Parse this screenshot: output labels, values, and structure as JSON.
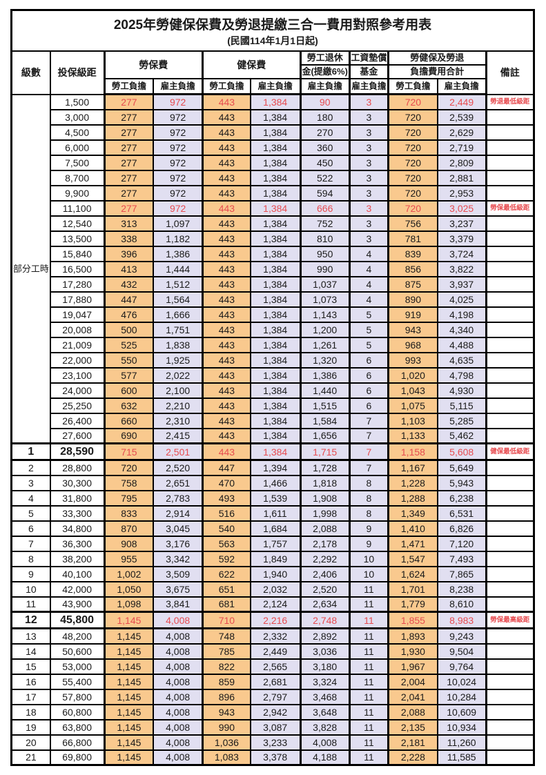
{
  "title": "2025年勞健保保費及勞退提繳三合一費用對照參考用表",
  "subtitle": "(民國114年1月1日起)",
  "colors": {
    "employee_bg": "#F9C98E",
    "employer_bg": "#E1DFF1",
    "highlight_red": "#E74C50",
    "border": "#000000"
  },
  "header": {
    "level": "級數",
    "bracket": "投保級距",
    "labor_insurance": "勞保費",
    "health_insurance": "健保費",
    "pension_line1": "勞工退休",
    "pension_line2": "金(提繳6%)",
    "wage_fund_line1": "工資墊償",
    "wage_fund_line2": "基金",
    "total_line1": "勞健保及勞退",
    "total_line2": "負擔費用合計",
    "notes": "備註",
    "employee": "勞工負擔",
    "employer": "雇主負擔"
  },
  "part_time": {
    "label": "部分工時",
    "rowspan": 23
  },
  "rows": [
    {
      "level": "",
      "bracket": "1,500",
      "cells": [
        "277",
        "972",
        "443",
        "1,384",
        "90",
        "3",
        "720",
        "2,449"
      ],
      "note": "勞退最低級距",
      "red": true,
      "em": false
    },
    {
      "level": "",
      "bracket": "3,000",
      "cells": [
        "277",
        "972",
        "443",
        "1,384",
        "180",
        "3",
        "720",
        "2,539"
      ],
      "note": "",
      "red": false,
      "em": false
    },
    {
      "level": "",
      "bracket": "4,500",
      "cells": [
        "277",
        "972",
        "443",
        "1,384",
        "270",
        "3",
        "720",
        "2,629"
      ],
      "note": "",
      "red": false,
      "em": false
    },
    {
      "level": "",
      "bracket": "6,000",
      "cells": [
        "277",
        "972",
        "443",
        "1,384",
        "360",
        "3",
        "720",
        "2,719"
      ],
      "note": "",
      "red": false,
      "em": false
    },
    {
      "level": "",
      "bracket": "7,500",
      "cells": [
        "277",
        "972",
        "443",
        "1,384",
        "450",
        "3",
        "720",
        "2,809"
      ],
      "note": "",
      "red": false,
      "em": false
    },
    {
      "level": "",
      "bracket": "8,700",
      "cells": [
        "277",
        "972",
        "443",
        "1,384",
        "522",
        "3",
        "720",
        "2,881"
      ],
      "note": "",
      "red": false,
      "em": false
    },
    {
      "level": "",
      "bracket": "9,900",
      "cells": [
        "277",
        "972",
        "443",
        "1,384",
        "594",
        "3",
        "720",
        "2,953"
      ],
      "note": "",
      "red": false,
      "em": false
    },
    {
      "level": "",
      "bracket": "11,100",
      "cells": [
        "277",
        "972",
        "443",
        "1,384",
        "666",
        "3",
        "720",
        "3,025"
      ],
      "note": "勞保最低級距",
      "red": true,
      "em": false
    },
    {
      "level": "",
      "bracket": "12,540",
      "cells": [
        "313",
        "1,097",
        "443",
        "1,384",
        "752",
        "3",
        "756",
        "3,237"
      ],
      "note": "",
      "red": false,
      "em": false
    },
    {
      "level": "",
      "bracket": "13,500",
      "cells": [
        "338",
        "1,182",
        "443",
        "1,384",
        "810",
        "3",
        "781",
        "3,379"
      ],
      "note": "",
      "red": false,
      "em": false
    },
    {
      "level": "",
      "bracket": "15,840",
      "cells": [
        "396",
        "1,386",
        "443",
        "1,384",
        "950",
        "4",
        "839",
        "3,724"
      ],
      "note": "",
      "red": false,
      "em": false
    },
    {
      "level": "",
      "bracket": "16,500",
      "cells": [
        "413",
        "1,444",
        "443",
        "1,384",
        "990",
        "4",
        "856",
        "3,822"
      ],
      "note": "",
      "red": false,
      "em": false
    },
    {
      "level": "",
      "bracket": "17,280",
      "cells": [
        "432",
        "1,512",
        "443",
        "1,384",
        "1,037",
        "4",
        "875",
        "3,937"
      ],
      "note": "",
      "red": false,
      "em": false
    },
    {
      "level": "",
      "bracket": "17,880",
      "cells": [
        "447",
        "1,564",
        "443",
        "1,384",
        "1,073",
        "4",
        "890",
        "4,025"
      ],
      "note": "",
      "red": false,
      "em": false
    },
    {
      "level": "",
      "bracket": "19,047",
      "cells": [
        "476",
        "1,666",
        "443",
        "1,384",
        "1,143",
        "5",
        "919",
        "4,198"
      ],
      "note": "",
      "red": false,
      "em": false
    },
    {
      "level": "",
      "bracket": "20,008",
      "cells": [
        "500",
        "1,751",
        "443",
        "1,384",
        "1,200",
        "5",
        "943",
        "4,340"
      ],
      "note": "",
      "red": false,
      "em": false
    },
    {
      "level": "",
      "bracket": "21,009",
      "cells": [
        "525",
        "1,838",
        "443",
        "1,384",
        "1,261",
        "5",
        "968",
        "4,488"
      ],
      "note": "",
      "red": false,
      "em": false
    },
    {
      "level": "",
      "bracket": "22,000",
      "cells": [
        "550",
        "1,925",
        "443",
        "1,384",
        "1,320",
        "6",
        "993",
        "4,635"
      ],
      "note": "",
      "red": false,
      "em": false
    },
    {
      "level": "",
      "bracket": "23,100",
      "cells": [
        "577",
        "2,022",
        "443",
        "1,384",
        "1,386",
        "6",
        "1,020",
        "4,798"
      ],
      "note": "",
      "red": false,
      "em": false
    },
    {
      "level": "",
      "bracket": "24,000",
      "cells": [
        "600",
        "2,100",
        "443",
        "1,384",
        "1,440",
        "6",
        "1,043",
        "4,930"
      ],
      "note": "",
      "red": false,
      "em": false
    },
    {
      "level": "",
      "bracket": "25,250",
      "cells": [
        "632",
        "2,210",
        "443",
        "1,384",
        "1,515",
        "6",
        "1,075",
        "5,115"
      ],
      "note": "",
      "red": false,
      "em": false
    },
    {
      "level": "",
      "bracket": "26,400",
      "cells": [
        "660",
        "2,310",
        "443",
        "1,384",
        "1,584",
        "7",
        "1,103",
        "5,285"
      ],
      "note": "",
      "red": false,
      "em": false
    },
    {
      "level": "",
      "bracket": "27,600",
      "cells": [
        "690",
        "2,415",
        "443",
        "1,384",
        "1,656",
        "7",
        "1,133",
        "5,462"
      ],
      "note": "",
      "red": false,
      "em": false
    },
    {
      "level": "1",
      "bracket": "28,590",
      "cells": [
        "715",
        "2,501",
        "443",
        "1,384",
        "1,715",
        "7",
        "1,158",
        "5,608"
      ],
      "note": "健保最低級距",
      "red": true,
      "em": true
    },
    {
      "level": "2",
      "bracket": "28,800",
      "cells": [
        "720",
        "2,520",
        "447",
        "1,394",
        "1,728",
        "7",
        "1,167",
        "5,649"
      ],
      "note": "",
      "red": false,
      "em": false
    },
    {
      "level": "3",
      "bracket": "30,300",
      "cells": [
        "758",
        "2,651",
        "470",
        "1,466",
        "1,818",
        "8",
        "1,228",
        "5,943"
      ],
      "note": "",
      "red": false,
      "em": false
    },
    {
      "level": "4",
      "bracket": "31,800",
      "cells": [
        "795",
        "2,783",
        "493",
        "1,539",
        "1,908",
        "8",
        "1,288",
        "6,238"
      ],
      "note": "",
      "red": false,
      "em": false
    },
    {
      "level": "5",
      "bracket": "33,300",
      "cells": [
        "833",
        "2,914",
        "516",
        "1,611",
        "1,998",
        "8",
        "1,349",
        "6,531"
      ],
      "note": "",
      "red": false,
      "em": false
    },
    {
      "level": "6",
      "bracket": "34,800",
      "cells": [
        "870",
        "3,045",
        "540",
        "1,684",
        "2,088",
        "9",
        "1,410",
        "6,826"
      ],
      "note": "",
      "red": false,
      "em": false
    },
    {
      "level": "7",
      "bracket": "36,300",
      "cells": [
        "908",
        "3,176",
        "563",
        "1,757",
        "2,178",
        "9",
        "1,471",
        "7,120"
      ],
      "note": "",
      "red": false,
      "em": false
    },
    {
      "level": "8",
      "bracket": "38,200",
      "cells": [
        "955",
        "3,342",
        "592",
        "1,849",
        "2,292",
        "10",
        "1,547",
        "7,493"
      ],
      "note": "",
      "red": false,
      "em": false
    },
    {
      "level": "9",
      "bracket": "40,100",
      "cells": [
        "1,002",
        "3,509",
        "622",
        "1,940",
        "2,406",
        "10",
        "1,624",
        "7,865"
      ],
      "note": "",
      "red": false,
      "em": false
    },
    {
      "level": "10",
      "bracket": "42,000",
      "cells": [
        "1,050",
        "3,675",
        "651",
        "2,032",
        "2,520",
        "11",
        "1,701",
        "8,238"
      ],
      "note": "",
      "red": false,
      "em": false
    },
    {
      "level": "11",
      "bracket": "43,900",
      "cells": [
        "1,098",
        "3,841",
        "681",
        "2,124",
        "2,634",
        "11",
        "1,779",
        "8,610"
      ],
      "note": "",
      "red": false,
      "em": false
    },
    {
      "level": "12",
      "bracket": "45,800",
      "cells": [
        "1,145",
        "4,008",
        "710",
        "2,216",
        "2,748",
        "11",
        "1,855",
        "8,983"
      ],
      "note": "勞保最高級距",
      "red": true,
      "em": true
    },
    {
      "level": "13",
      "bracket": "48,200",
      "cells": [
        "1,145",
        "4,008",
        "748",
        "2,332",
        "2,892",
        "11",
        "1,893",
        "9,243"
      ],
      "note": "",
      "red": false,
      "em": false
    },
    {
      "level": "14",
      "bracket": "50,600",
      "cells": [
        "1,145",
        "4,008",
        "785",
        "2,449",
        "3,036",
        "11",
        "1,930",
        "9,504"
      ],
      "note": "",
      "red": false,
      "em": false
    },
    {
      "level": "15",
      "bracket": "53,000",
      "cells": [
        "1,145",
        "4,008",
        "822",
        "2,565",
        "3,180",
        "11",
        "1,967",
        "9,764"
      ],
      "note": "",
      "red": false,
      "em": false
    },
    {
      "level": "16",
      "bracket": "55,400",
      "cells": [
        "1,145",
        "4,008",
        "859",
        "2,681",
        "3,324",
        "11",
        "2,004",
        "10,024"
      ],
      "note": "",
      "red": false,
      "em": false
    },
    {
      "level": "17",
      "bracket": "57,800",
      "cells": [
        "1,145",
        "4,008",
        "896",
        "2,797",
        "3,468",
        "11",
        "2,041",
        "10,284"
      ],
      "note": "",
      "red": false,
      "em": false
    },
    {
      "level": "18",
      "bracket": "60,800",
      "cells": [
        "1,145",
        "4,008",
        "943",
        "2,942",
        "3,648",
        "11",
        "2,088",
        "10,609"
      ],
      "note": "",
      "red": false,
      "em": false
    },
    {
      "level": "19",
      "bracket": "63,800",
      "cells": [
        "1,145",
        "4,008",
        "990",
        "3,087",
        "3,828",
        "11",
        "2,135",
        "10,934"
      ],
      "note": "",
      "red": false,
      "em": false
    },
    {
      "level": "20",
      "bracket": "66,800",
      "cells": [
        "1,145",
        "4,008",
        "1,036",
        "3,233",
        "4,008",
        "11",
        "2,181",
        "11,260"
      ],
      "note": "",
      "red": false,
      "em": false
    },
    {
      "level": "21",
      "bracket": "69,800",
      "cells": [
        "1,145",
        "4,008",
        "1,083",
        "3,378",
        "4,188",
        "11",
        "2,228",
        "11,585"
      ],
      "note": "",
      "red": false,
      "em": false
    }
  ]
}
